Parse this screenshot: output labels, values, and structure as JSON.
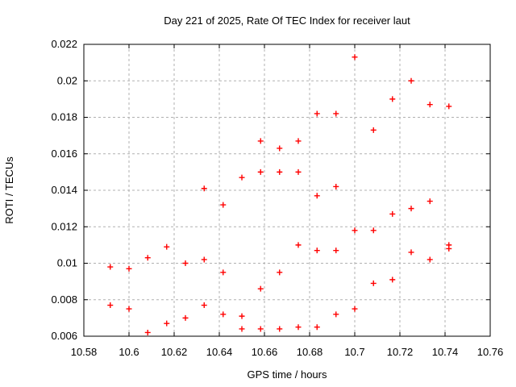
{
  "chart_data": {
    "type": "scatter",
    "title": "Day 221 of 2025, Rate Of TEC Index for receiver laut",
    "xlabel": "GPS time / hours",
    "ylabel": "ROTI / TECUs",
    "xlim": [
      10.58,
      10.76
    ],
    "ylim": [
      0.006,
      0.022
    ],
    "xticks": {
      "values": [
        10.58,
        10.6,
        10.62,
        10.64,
        10.66,
        10.68,
        10.7,
        10.72,
        10.74,
        10.76
      ],
      "labels": [
        "10.58",
        "10.6",
        "10.62",
        "10.64",
        "10.66",
        "10.68",
        "10.7",
        "10.72",
        "10.74",
        "10.76"
      ]
    },
    "yticks": {
      "values": [
        0.006,
        0.008,
        0.01,
        0.012,
        0.014,
        0.016,
        0.018,
        0.02,
        0.022
      ],
      "labels": [
        "0.006",
        "0.008",
        "0.01",
        "0.012",
        "0.014",
        "0.016",
        "0.018",
        "0.02",
        "0.022"
      ]
    },
    "grid": true,
    "legend_position": "none",
    "marker": {
      "shape": "plus",
      "color": "#ff0000",
      "size": 7
    },
    "colors": {
      "grid": "#b0b0b0",
      "axis": "#000000",
      "text": "#000000",
      "background": "#ffffff"
    },
    "series": [
      {
        "name": "ROTI",
        "points": [
          [
            10.5917,
            0.0098
          ],
          [
            10.5917,
            0.0077
          ],
          [
            10.6,
            0.0097
          ],
          [
            10.6,
            0.0075
          ],
          [
            10.6083,
            0.0103
          ],
          [
            10.6083,
            0.0062
          ],
          [
            10.6167,
            0.0109
          ],
          [
            10.6167,
            0.0067
          ],
          [
            10.625,
            0.01
          ],
          [
            10.625,
            0.007
          ],
          [
            10.6333,
            0.0141
          ],
          [
            10.6333,
            0.0102
          ],
          [
            10.6333,
            0.0077
          ],
          [
            10.6417,
            0.0132
          ],
          [
            10.6417,
            0.0095
          ],
          [
            10.6417,
            0.0072
          ],
          [
            10.65,
            0.0147
          ],
          [
            10.65,
            0.0071
          ],
          [
            10.65,
            0.0064
          ],
          [
            10.6583,
            0.0167
          ],
          [
            10.6583,
            0.015
          ],
          [
            10.6583,
            0.0086
          ],
          [
            10.6583,
            0.0064
          ],
          [
            10.6667,
            0.0163
          ],
          [
            10.6667,
            0.015
          ],
          [
            10.6667,
            0.0095
          ],
          [
            10.6667,
            0.0064
          ],
          [
            10.675,
            0.0167
          ],
          [
            10.675,
            0.015
          ],
          [
            10.675,
            0.011
          ],
          [
            10.675,
            0.0065
          ],
          [
            10.6833,
            0.0182
          ],
          [
            10.6833,
            0.0137
          ],
          [
            10.6833,
            0.0107
          ],
          [
            10.6833,
            0.0065
          ],
          [
            10.6917,
            0.0182
          ],
          [
            10.6917,
            0.0142
          ],
          [
            10.6917,
            0.0107
          ],
          [
            10.6917,
            0.0072
          ],
          [
            10.7,
            0.0213
          ],
          [
            10.7,
            0.0118
          ],
          [
            10.7,
            0.0075
          ],
          [
            10.7083,
            0.0173
          ],
          [
            10.7083,
            0.0118
          ],
          [
            10.7083,
            0.0089
          ],
          [
            10.7167,
            0.019
          ],
          [
            10.7167,
            0.0127
          ],
          [
            10.7167,
            0.0091
          ],
          [
            10.725,
            0.02
          ],
          [
            10.725,
            0.013
          ],
          [
            10.725,
            0.0106
          ],
          [
            10.7333,
            0.0187
          ],
          [
            10.7333,
            0.0134
          ],
          [
            10.7333,
            0.0102
          ],
          [
            10.7417,
            0.0186
          ],
          [
            10.7417,
            0.011
          ],
          [
            10.7417,
            0.0108
          ]
        ]
      }
    ]
  }
}
